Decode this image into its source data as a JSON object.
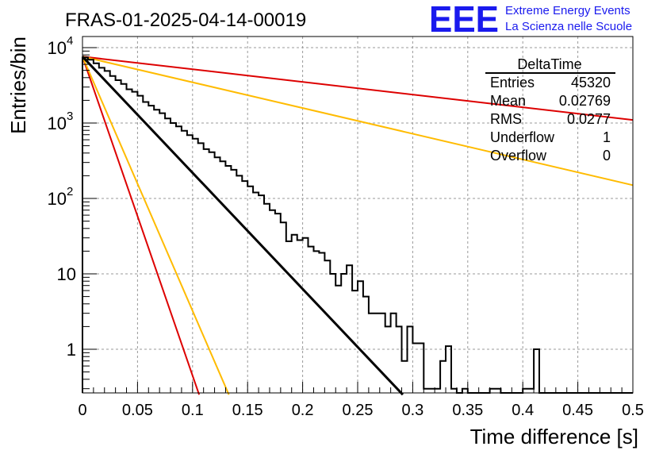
{
  "header": {
    "run_title": "FRAS-01-2025-04-14-00019",
    "logo_text": "EEE",
    "logo_line1": "Extreme Energy Events",
    "logo_line2": "La Scienza nelle Scuole"
  },
  "stats_box": {
    "title": "DeltaTime",
    "rows": [
      {
        "label": "Entries",
        "value": "45320"
      },
      {
        "label": "Mean",
        "value": "0.02769"
      },
      {
        "label": "RMS",
        "value": "0.0277"
      },
      {
        "label": "Underflow",
        "value": "1"
      },
      {
        "label": "Overflow",
        "value": "0"
      }
    ]
  },
  "colors": {
    "histogram": "#000000",
    "fit": "#000000",
    "red_curves": "#dd0000",
    "orange_curves": "#ffbb00",
    "logo": "#1a1aee",
    "grid": "#999999"
  },
  "chart_data": {
    "type": "line",
    "title": "FRAS-01-2025-04-14-00019",
    "xlabel": "Time difference [s]",
    "ylabel": "Entries/bin",
    "xlim": [
      0,
      0.5
    ],
    "ylim": [
      0.25,
      15000
    ],
    "yscale": "log",
    "grid": true,
    "xticks": [
      "0",
      "0.05",
      "0.1",
      "0.15",
      "0.2",
      "0.25",
      "0.3",
      "0.35",
      "0.4",
      "0.45",
      "0.5"
    ],
    "yticks": [
      {
        "value": 1,
        "base": "1",
        "exp": ""
      },
      {
        "value": 10,
        "base": "10",
        "exp": ""
      },
      {
        "value": 100,
        "base": "10",
        "exp": "2"
      },
      {
        "value": 1000,
        "base": "10",
        "exp": "3"
      },
      {
        "value": 10000,
        "base": "10",
        "exp": "4"
      }
    ],
    "histogram": {
      "bin_width": 0.005,
      "values": [
        7400,
        6900,
        6200,
        5400,
        4900,
        4200,
        3700,
        3300,
        2800,
        2600,
        2300,
        1900,
        1700,
        1500,
        1350,
        1150,
        1000,
        900,
        790,
        690,
        620,
        540,
        450,
        410,
        350,
        310,
        270,
        240,
        200,
        170,
        145,
        120,
        110,
        85,
        70,
        63,
        48,
        27,
        33,
        28,
        30,
        23,
        20,
        19,
        15,
        10,
        7,
        10,
        13,
        6,
        8,
        5,
        3,
        3,
        3,
        2,
        3,
        2,
        0.7,
        2,
        1.2,
        1.2,
        0.3,
        0.3,
        0.3,
        0.7,
        1.1,
        0.3,
        0,
        0.3,
        0,
        0,
        0,
        0,
        0.3,
        0.3,
        0,
        0,
        0,
        0,
        0.3,
        0.3,
        1,
        0,
        0,
        0,
        0,
        0,
        0,
        0,
        0,
        0,
        0,
        0,
        0,
        0,
        0,
        0,
        0,
        0
      ]
    },
    "series": [
      {
        "points": [
          [
            0.0,
            7600
          ],
          [
            0.291,
            0.25
          ]
        ]
      },
      {
        "points": [
          [
            0.0,
            7600
          ],
          [
            0.5,
            1100
          ]
        ]
      },
      {
        "points": [
          [
            0.0,
            7600
          ],
          [
            0.106,
            0.25
          ]
        ]
      },
      {
        "points": [
          [
            0.0,
            7600
          ],
          [
            0.5,
            150
          ]
        ]
      },
      {
        "points": [
          [
            0.0,
            7600
          ],
          [
            0.133,
            0.25
          ]
        ]
      }
    ]
  }
}
